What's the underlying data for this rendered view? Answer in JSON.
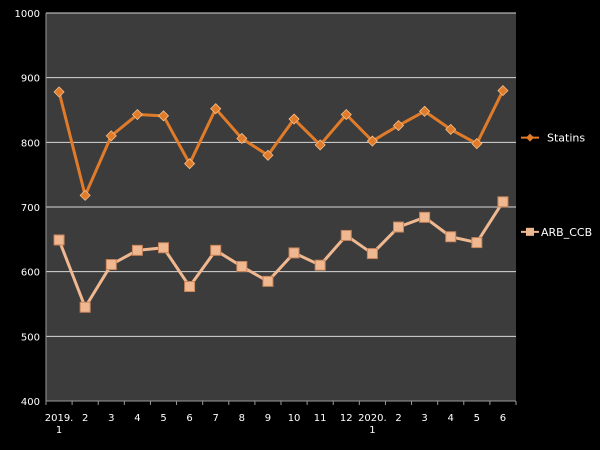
{
  "chart_data": {
    "type": "line",
    "title": "",
    "xlabel": "",
    "ylabel": "",
    "categories": [
      "2019. 1",
      "2",
      "3",
      "4",
      "5",
      "6",
      "7",
      "8",
      "9",
      "10",
      "11",
      "12",
      "2020. 1",
      "2",
      "3",
      "4",
      "5",
      "6"
    ],
    "ylim": [
      400,
      1000
    ],
    "yticks": [
      400,
      500,
      600,
      700,
      800,
      900,
      1000
    ],
    "grid": true,
    "legend": "right",
    "series": [
      {
        "name": "Statins",
        "marker": "diamond",
        "color": "#e07b2a",
        "values": [
          878,
          718,
          810,
          843,
          841,
          767,
          852,
          806,
          780,
          836,
          796,
          843,
          802,
          826,
          848,
          820,
          798,
          880
        ]
      },
      {
        "name": "ARB_CCB",
        "marker": "square",
        "color": "#f0b890",
        "values": [
          649,
          545,
          611,
          633,
          637,
          577,
          633,
          608,
          585,
          629,
          610,
          656,
          628,
          669,
          684,
          654,
          645,
          708
        ]
      }
    ]
  }
}
